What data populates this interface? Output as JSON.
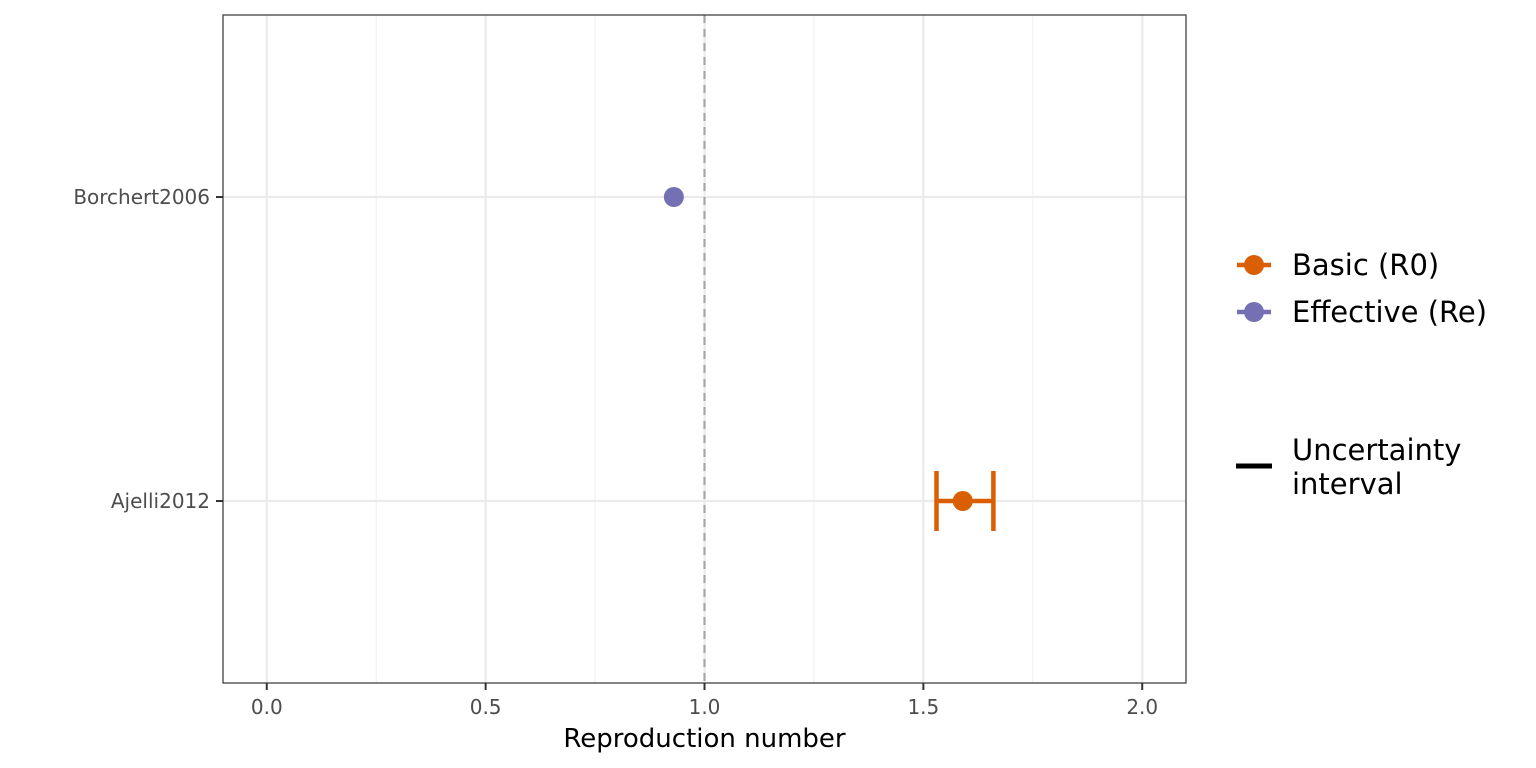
{
  "chart_data": {
    "type": "scatter",
    "xlabel": "Reproduction number",
    "ylabel": "",
    "xlim": [
      -0.1,
      2.1
    ],
    "x_ticks": [
      0.0,
      0.5,
      1.0,
      1.5,
      2.0
    ],
    "x_tick_labels": [
      "0.0",
      "0.5",
      "1.0",
      "1.5",
      "2.0"
    ],
    "categories": [
      "Borchert2006",
      "Ajelli2012"
    ],
    "reference_line": {
      "x": 1.0,
      "style": "dashed"
    },
    "grid": true,
    "legend_position": "right",
    "series": [
      {
        "name": "Basic (R0)",
        "color": "#D95F02",
        "points": [
          {
            "category": "Ajelli2012",
            "value": 1.59,
            "lower": 1.53,
            "upper": 1.66
          }
        ]
      },
      {
        "name": "Effective (Re)",
        "color": "#7570B3",
        "points": [
          {
            "category": "Borchert2006",
            "value": 0.93
          }
        ]
      }
    ],
    "legend": {
      "entries": [
        "Basic (R0)",
        "Effective (Re)"
      ],
      "interval_label_line1": "Uncertainty",
      "interval_label_line2": "interval"
    }
  }
}
